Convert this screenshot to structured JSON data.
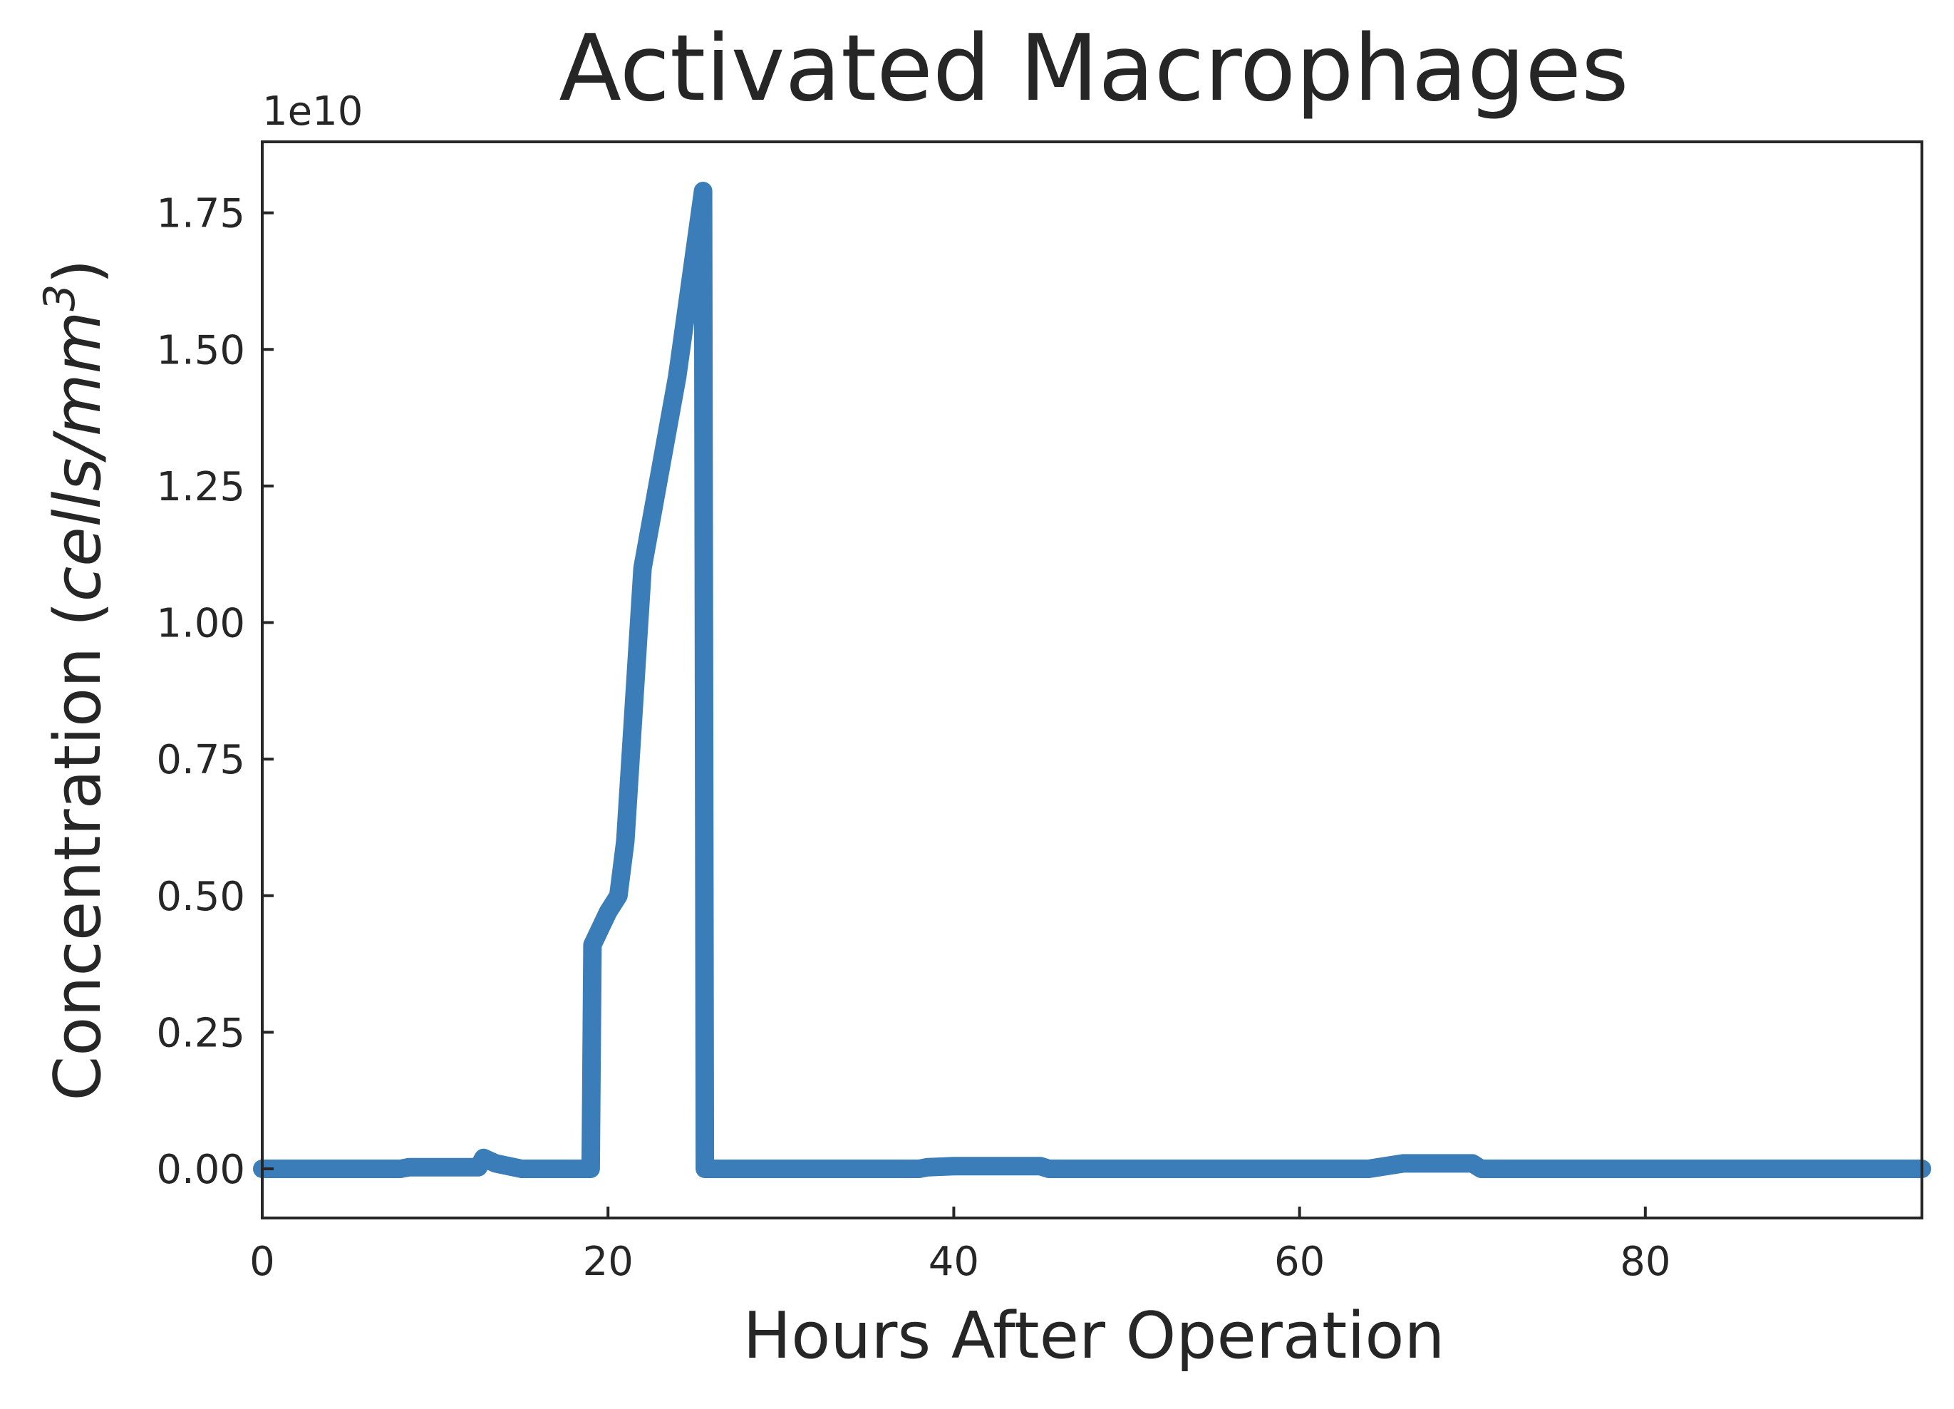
{
  "chart_data": {
    "type": "line",
    "title": "Activated Macrophages",
    "xlabel": "Hours After Operation",
    "ylabel_prefix": "Concentration (",
    "ylabel_italic": "cells/mm",
    "ylabel_sup": "3",
    "ylabel_suffix": ")",
    "y_offset_label": "1e10",
    "xlim": [
      0,
      96
    ],
    "ylim": [
      -0.09,
      1.88
    ],
    "y_scale_factor": 10000000000.0,
    "x_ticks": [
      0,
      20,
      40,
      60,
      80
    ],
    "x_tick_labels": [
      "0",
      "20",
      "40",
      "60",
      "80"
    ],
    "y_ticks": [
      0,
      0.25,
      0.5,
      0.75,
      1.0,
      1.25,
      1.5,
      1.75
    ],
    "y_tick_labels": [
      "0.00",
      "0.25",
      "0.50",
      "0.75",
      "1.00",
      "1.25",
      "1.50",
      "1.75"
    ],
    "grid": false,
    "series": [
      {
        "color": "#3a7db8",
        "x": [
          0,
          8,
          8.5,
          12.5,
          12.8,
          13.5,
          15,
          19,
          19.1,
          19.4,
          20,
          20.6,
          21,
          21.5,
          22,
          24,
          25.5,
          25.55,
          25.6,
          38,
          38.5,
          40,
          45,
          45.5,
          64,
          66,
          67,
          70,
          70.5,
          84,
          96
        ],
        "y": [
          0,
          0,
          0.003,
          0.003,
          0.02,
          0.01,
          0,
          0,
          0.41,
          0.43,
          0.47,
          0.5,
          0.6,
          0.85,
          1.1,
          1.45,
          1.79,
          0.9,
          0,
          0,
          0.003,
          0.005,
          0.005,
          0,
          0,
          0.01,
          0.01,
          0.01,
          0,
          0,
          0
        ]
      }
    ]
  }
}
